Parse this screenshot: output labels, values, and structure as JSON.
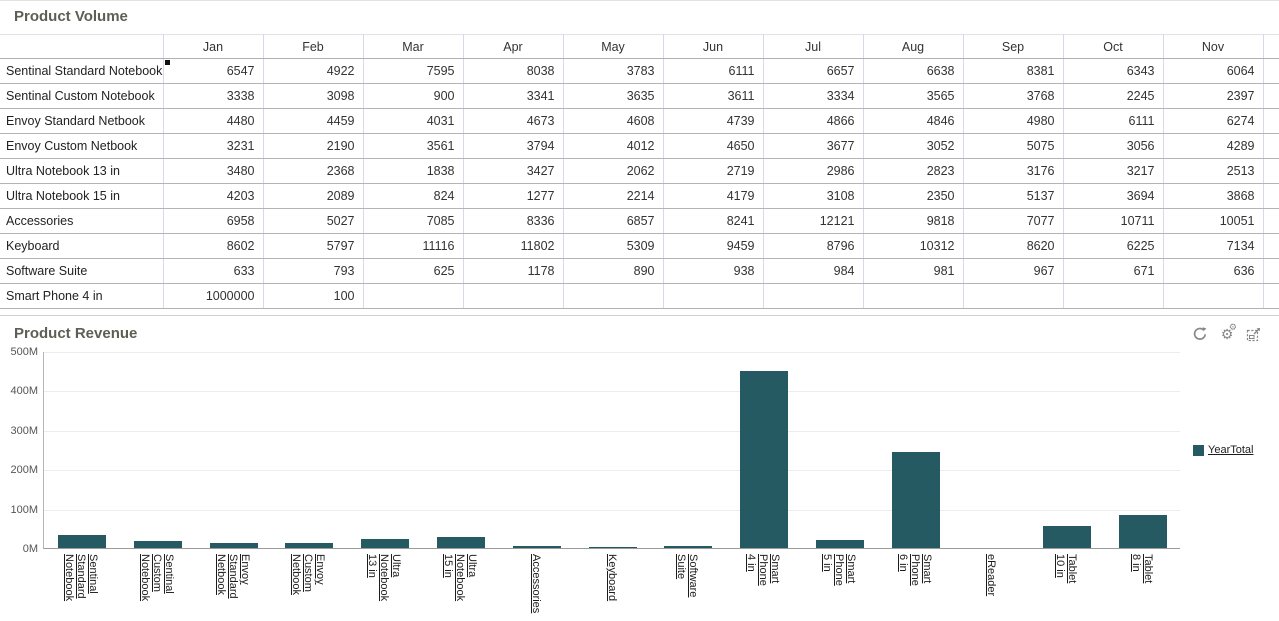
{
  "volume_panel": {
    "title": "Product Volume",
    "columns": [
      "Jan",
      "Feb",
      "Mar",
      "Apr",
      "May",
      "Jun",
      "Jul",
      "Aug",
      "Sep",
      "Oct",
      "Nov"
    ],
    "rows": [
      {
        "label": "Sentinal Standard Notebook",
        "marker": true,
        "values": [
          6547,
          4922,
          7595,
          8038,
          3783,
          6111,
          6657,
          6638,
          8381,
          6343,
          6064
        ]
      },
      {
        "label": "Sentinal Custom Notebook",
        "values": [
          3338,
          3098,
          900,
          3341,
          3635,
          3611,
          3334,
          3565,
          3768,
          2245,
          2397
        ]
      },
      {
        "label": "Envoy Standard Netbook",
        "values": [
          4480,
          4459,
          4031,
          4673,
          4608,
          4739,
          4866,
          4846,
          4980,
          6111,
          6274
        ]
      },
      {
        "label": "Envoy Custom Netbook",
        "values": [
          3231,
          2190,
          3561,
          3794,
          4012,
          4650,
          3677,
          3052,
          5075,
          3056,
          4289
        ]
      },
      {
        "label": "Ultra Notebook 13 in",
        "values": [
          3480,
          2368,
          1838,
          3427,
          2062,
          2719,
          2986,
          2823,
          3176,
          3217,
          2513
        ]
      },
      {
        "label": "Ultra Notebook 15 in",
        "values": [
          4203,
          2089,
          824,
          1277,
          2214,
          4179,
          3108,
          2350,
          5137,
          3694,
          3868
        ]
      },
      {
        "label": "Accessories",
        "values": [
          6958,
          5027,
          7085,
          8336,
          6857,
          8241,
          12121,
          9818,
          7077,
          10711,
          10051
        ]
      },
      {
        "label": "Keyboard",
        "values": [
          8602,
          5797,
          11116,
          11802,
          5309,
          9459,
          8796,
          10312,
          8620,
          6225,
          7134
        ]
      },
      {
        "label": "Software Suite",
        "values": [
          633,
          793,
          625,
          1178,
          890,
          938,
          984,
          981,
          967,
          671,
          636
        ]
      },
      {
        "label": "Smart Phone 4 in",
        "values": [
          1000000,
          100,
          null,
          null,
          null,
          null,
          null,
          null,
          null,
          null,
          null
        ]
      }
    ]
  },
  "revenue_panel": {
    "title": "Product Revenue",
    "toolbar_icons": [
      "refresh",
      "settings",
      "maximize"
    ],
    "legend_label": "YearTotal"
  },
  "chart_data": {
    "type": "bar",
    "title": "Product Revenue",
    "categories": [
      "Sentinal Standard Notebook",
      "Sentinal Custom Notebook",
      "Envoy Standard Netbook",
      "Envoy Custom Netbook",
      "Ultra Notebook 13 in",
      "Ultra Notebook 15 in",
      "Accessories",
      "Keyboard",
      "Software Suite",
      "Smart Phone 4 in",
      "Smart Phone 5 in",
      "Smart Phone 6 in",
      "eReader",
      "Tablet 10 in",
      "Tablet 8 in"
    ],
    "category_label_lines": [
      [
        "Sentinal",
        "Standard",
        "Notebook"
      ],
      [
        "Sentinal",
        "Custom",
        "Notebook"
      ],
      [
        "Envoy",
        "Standard",
        "Netbook"
      ],
      [
        "Envoy",
        "Custom",
        "Netbook"
      ],
      [
        "Ultra",
        "Notebook",
        "13 in"
      ],
      [
        "Ultra",
        "Notebook",
        "15 in"
      ],
      [
        "Accessories"
      ],
      [
        "Keyboard"
      ],
      [
        "Software",
        "Suite"
      ],
      [
        "Smart",
        "Phone",
        "4 in"
      ],
      [
        "Smart",
        "Phone",
        "5 in"
      ],
      [
        "Smart",
        "Phone",
        "6 in"
      ],
      [
        "eReader"
      ],
      [
        "Tablet",
        "10 in"
      ],
      [
        "Tablet",
        "8 in"
      ]
    ],
    "series": [
      {
        "name": "YearTotal",
        "values": [
          33,
          18,
          13,
          12,
          23,
          27,
          5,
          2,
          4,
          450,
          21,
          243,
          0,
          55,
          84
        ]
      }
    ],
    "values_unit": "M",
    "ylim": [
      0,
      500
    ],
    "yticks": [
      "0M",
      "100M",
      "200M",
      "300M",
      "400M",
      "500M"
    ],
    "grid": true,
    "legend_position": "right",
    "bar_color": "#265a63"
  }
}
